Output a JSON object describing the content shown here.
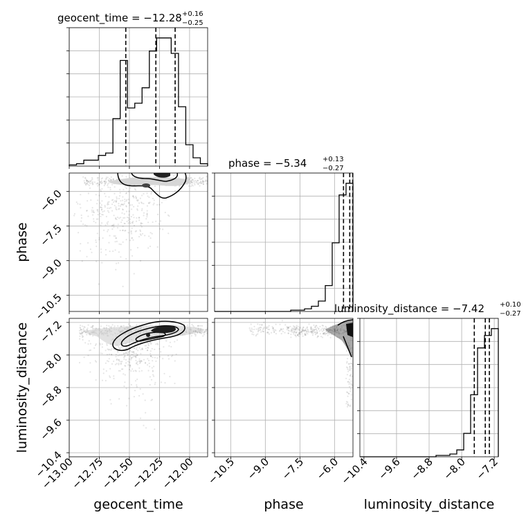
{
  "chart_data": {
    "type": "corner",
    "parameters": [
      {
        "name": "geocent_time",
        "title": {
          "prefix": "geocent_time = −12.28",
          "plus": "+0.16",
          "minus": "−0.25"
        },
        "median": -12.28,
        "err_plus": 0.16,
        "err_minus": 0.25,
        "range": [
          -13.0,
          -11.85
        ],
        "ticks": [
          -13.0,
          -12.75,
          -12.5,
          -12.25,
          -12.0
        ],
        "tick_labels": [
          "−13.00",
          "−12.75",
          "−12.50",
          "−12.25",
          "−12.00"
        ],
        "quantiles": [
          -12.53,
          -12.28,
          -12.12
        ],
        "hist_density": [
          1,
          2,
          5,
          5,
          9,
          11,
          40,
          89,
          49,
          53,
          66,
          97,
          108,
          108,
          95,
          50,
          18,
          7,
          2
        ]
      },
      {
        "name": "phase",
        "title": {
          "prefix": "phase = −5.34",
          "plus": "+0.13",
          "minus": "−0.27"
        },
        "median": -5.34,
        "err_plus": 0.13,
        "err_minus": 0.27,
        "range": [
          -11.2,
          -5.2
        ],
        "ticks": [
          -10.5,
          -9.0,
          -7.5,
          -6.0
        ],
        "tick_labels": [
          "−10.5",
          "−9.0",
          "−7.5",
          "−6.0"
        ],
        "quantiles": [
          -5.61,
          -5.34,
          -5.21
        ],
        "hist_density": [
          0,
          0,
          0,
          0,
          0,
          0,
          0,
          0,
          0,
          0,
          0,
          1,
          1,
          2,
          4,
          8,
          20,
          53,
          90,
          99
        ]
      },
      {
        "name": "luminosity_distance",
        "title": {
          "prefix": "luminosity_distance = −7.42",
          "plus": "+0.10",
          "minus": "−0.27"
        },
        "median": -7.42,
        "err_plus": 0.1,
        "err_minus": 0.27,
        "range": [
          -10.5,
          -7.1
        ],
        "ticks": [
          -10.4,
          -9.6,
          -8.8,
          -8.0,
          -7.2
        ],
        "tick_labels": [
          "−10.4",
          "−9.6",
          "−8.8",
          "−8.0",
          "−7.2"
        ],
        "quantiles": [
          -7.69,
          -7.42,
          -7.32
        ],
        "hist_density": [
          0,
          0,
          0,
          0,
          0,
          0,
          0,
          0,
          0,
          0,
          0,
          1,
          1,
          2,
          5,
          17,
          45,
          79,
          88,
          93
        ]
      }
    ]
  }
}
